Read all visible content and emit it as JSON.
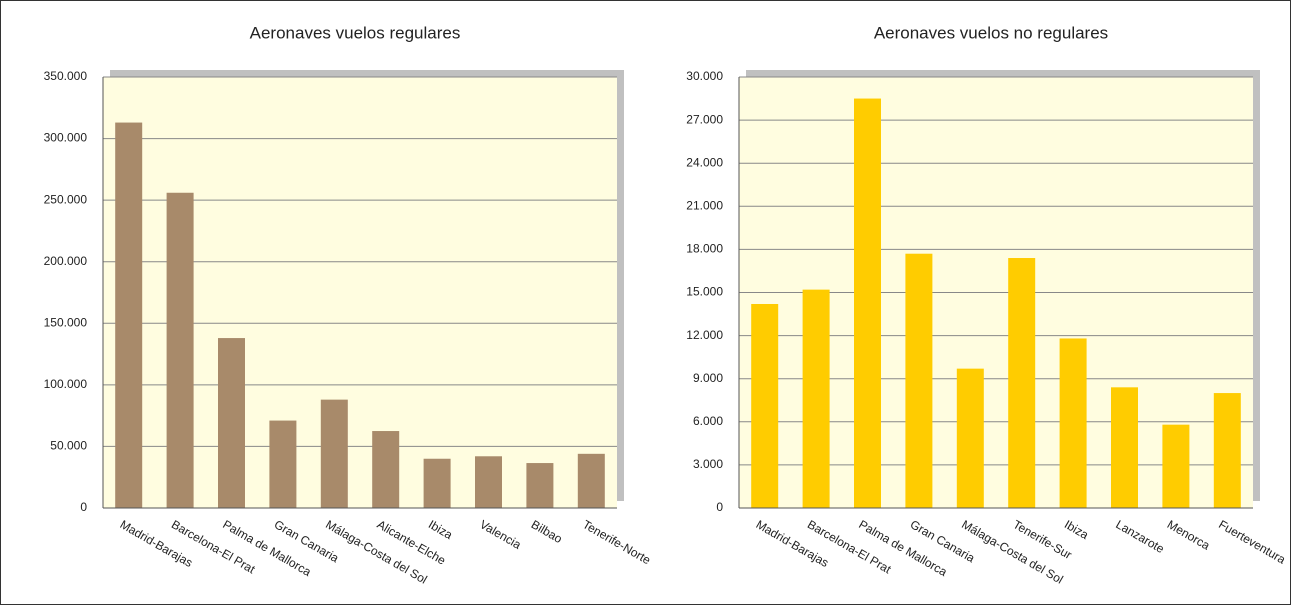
{
  "chart_data": [
    {
      "type": "bar",
      "title": "Aeronaves vuelos regulares",
      "categories": [
        "Madrid-Barajas",
        "Barcelona-El Prat",
        "Palma de Mallorca",
        "Gran Canaria",
        "Málaga-Costa del Sol",
        "Alicante-Elche",
        "Ibiza",
        "Valencia",
        "Bilbao",
        "Tenerife-Norte"
      ],
      "values": [
        313000,
        256000,
        138000,
        71000,
        88000,
        62500,
        40000,
        42000,
        36500,
        44000
      ],
      "color": "#a88a6a",
      "ylim": [
        0,
        350000
      ],
      "yticks": [
        0,
        {
          "value": 50000,
          "label": "50.000"
        },
        {
          "value": 100000,
          "label": "100.000"
        },
        {
          "value": 150000,
          "label": "150.000"
        },
        {
          "value": 200000,
          "label": "200.000"
        },
        {
          "value": 250000,
          "label": "250.000"
        },
        {
          "value": 300000,
          "label": "300.000"
        },
        {
          "value": 350000,
          "label": "350.000"
        }
      ],
      "grid": true
    },
    {
      "type": "bar",
      "title": "Aeronaves vuelos no regulares",
      "categories": [
        "Madrid-Barajas",
        "Barcelona-El Prat",
        "Palma  de Mallorca",
        "Gran Canaria",
        "Málaga-Costa del Sol",
        "Tenerife-Sur",
        "Ibiza",
        "Lanzarote",
        "Menorca",
        "Fuerteventura"
      ],
      "values": [
        14200,
        15200,
        28500,
        17700,
        9700,
        17400,
        11800,
        8400,
        5800,
        8000
      ],
      "color": "#ffcc00",
      "ylim": [
        0,
        30000
      ],
      "yticks": [
        0,
        {
          "value": 3000,
          "label": "3.000"
        },
        {
          "value": 6000,
          "label": "6.000"
        },
        {
          "value": 9000,
          "label": "9.000"
        },
        {
          "value": 12000,
          "label": "12.000"
        },
        {
          "value": 15000,
          "label": "15.000"
        },
        {
          "value": 18000,
          "label": "18.000"
        },
        {
          "value": 21000,
          "label": "21.000"
        },
        {
          "value": 24000,
          "label": "24.000"
        },
        {
          "value": 27000,
          "label": "27.000"
        },
        {
          "value": 30000,
          "label": "30.000"
        }
      ],
      "grid": true
    }
  ]
}
